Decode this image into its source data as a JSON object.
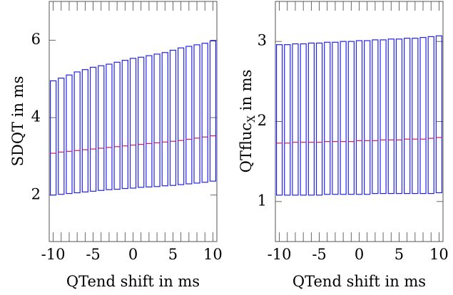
{
  "chart_data": [
    {
      "type": "box",
      "id": "left",
      "xlabel": "QTend shift in ms",
      "ylabel": "SDQT in ms",
      "xlim": [
        -10.5,
        10.5
      ],
      "ylim": [
        0.8,
        7.0
      ],
      "x_ticks": [
        -10,
        -5,
        0,
        5,
        10
      ],
      "x_tick_labels": [
        "-10",
        "-5",
        "0",
        "5",
        "10"
      ],
      "y_ticks": [
        2,
        4,
        6
      ],
      "y_tick_labels": [
        "2",
        "4",
        "6"
      ],
      "grid": false,
      "x": [
        -10,
        -9,
        -8,
        -7,
        -6,
        -5,
        -4,
        -3,
        -2,
        -1,
        0,
        1,
        2,
        3,
        4,
        5,
        6,
        7,
        8,
        9,
        10
      ],
      "q1": [
        2.0,
        2.02,
        2.04,
        2.06,
        2.08,
        2.1,
        2.12,
        2.14,
        2.15,
        2.17,
        2.18,
        2.2,
        2.21,
        2.22,
        2.24,
        2.25,
        2.27,
        2.29,
        2.31,
        2.33,
        2.36
      ],
      "q3": [
        4.95,
        5.02,
        5.1,
        5.18,
        5.24,
        5.3,
        5.34,
        5.38,
        5.43,
        5.48,
        5.53,
        5.56,
        5.6,
        5.64,
        5.68,
        5.74,
        5.8,
        5.84,
        5.88,
        5.92,
        5.98
      ],
      "median": [
        3.08,
        3.11,
        3.13,
        3.15,
        3.17,
        3.19,
        3.21,
        3.23,
        3.25,
        3.27,
        3.29,
        3.31,
        3.33,
        3.35,
        3.37,
        3.39,
        3.41,
        3.44,
        3.47,
        3.5,
        3.53
      ],
      "box_color": "#2222ee",
      "median_color": "#cc1a66"
    },
    {
      "type": "box",
      "id": "right",
      "xlabel": "QTend shift in ms",
      "ylabel_main": "QTfluc",
      "ylabel_sub": "X",
      "ylabel_tail": " in ms",
      "xlim": [
        -10.5,
        10.5
      ],
      "ylim": [
        0.5,
        3.5
      ],
      "x_ticks": [
        -10,
        -5,
        0,
        5,
        10
      ],
      "x_tick_labels": [
        "-10",
        "-5",
        "0",
        "5",
        "10"
      ],
      "y_ticks": [
        1,
        2,
        3
      ],
      "y_tick_labels": [
        "1",
        "2",
        "3"
      ],
      "grid": false,
      "x": [
        -10,
        -9,
        -8,
        -7,
        -6,
        -5,
        -4,
        -3,
        -2,
        -1,
        0,
        1,
        2,
        3,
        4,
        5,
        6,
        7,
        8,
        9,
        10
      ],
      "q1": [
        1.08,
        1.08,
        1.08,
        1.08,
        1.08,
        1.08,
        1.09,
        1.09,
        1.09,
        1.09,
        1.09,
        1.09,
        1.1,
        1.1,
        1.1,
        1.1,
        1.1,
        1.1,
        1.1,
        1.1,
        1.11
      ],
      "q3": [
        2.96,
        2.96,
        2.97,
        2.97,
        2.98,
        2.98,
        2.99,
        2.99,
        3.0,
        3.0,
        3.01,
        3.01,
        3.02,
        3.02,
        3.03,
        3.03,
        3.04,
        3.04,
        3.05,
        3.06,
        3.07
      ],
      "median": [
        1.73,
        1.73,
        1.74,
        1.74,
        1.74,
        1.74,
        1.75,
        1.75,
        1.75,
        1.75,
        1.76,
        1.76,
        1.76,
        1.77,
        1.77,
        1.77,
        1.78,
        1.78,
        1.78,
        1.79,
        1.8
      ],
      "box_color": "#2222ee",
      "median_color": "#cc1a66"
    }
  ]
}
